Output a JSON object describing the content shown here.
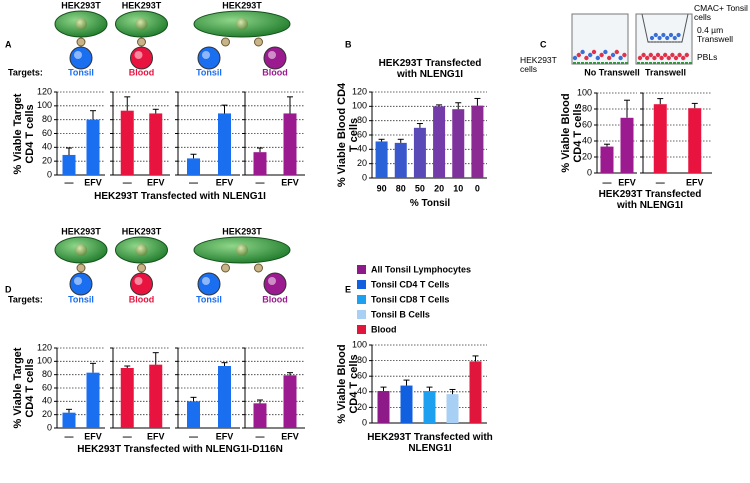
{
  "chart_data": [
    {
      "type": "bar",
      "panel": "A",
      "cell_label": "HEK293T",
      "targets_label": "Targets:",
      "ylabel": "% Viable Target CD4 T cells",
      "xlabel": "HEK293T Transfected with NLENG1I",
      "ylim": [
        0,
        120
      ],
      "yticks": [
        0,
        20,
        40,
        60,
        80,
        100,
        120
      ],
      "grid": true,
      "groups": [
        {
          "target": "Tonsil",
          "color": "#1a6ef0",
          "categories": [
            "—",
            "EFV"
          ],
          "values": [
            29,
            80
          ],
          "errors": [
            10,
            13
          ]
        },
        {
          "target": "Blood",
          "color": "#e8133f",
          "categories": [
            "—",
            "EFV"
          ],
          "values": [
            93,
            89
          ],
          "errors": [
            20,
            6
          ]
        },
        {
          "target": "Tonsil",
          "color": "#1a6ef0",
          "categories": [
            "—",
            "EFV"
          ],
          "values": [
            24,
            89
          ],
          "errors": [
            6,
            12
          ]
        },
        {
          "target": "Blood",
          "color": "#9b1a8f",
          "categories": [
            "—",
            "EFV"
          ],
          "values": [
            33,
            89
          ],
          "errors": [
            6,
            24
          ]
        }
      ]
    },
    {
      "type": "bar",
      "panel": "B",
      "title": "HEK293T Transfected with NLENG1I",
      "ylabel": "% Viable Blood CD4 T cells",
      "xlabel": "% Tonsil",
      "ylim": [
        0,
        120
      ],
      "yticks": [
        0,
        20,
        40,
        60,
        80,
        100,
        120
      ],
      "grid": true,
      "groups": [
        {
          "categories": [
            "90",
            "80",
            "50",
            "20",
            "10",
            "0"
          ],
          "values": [
            51,
            49,
            70,
            100,
            96,
            101
          ],
          "errors": [
            3,
            5,
            6,
            2,
            9,
            10
          ],
          "colors": [
            "#2a62d8",
            "#3a57cc",
            "#5a4ab8",
            "#733ca8",
            "#7e329c",
            "#8a2a92"
          ]
        }
      ]
    },
    {
      "type": "bar",
      "panel": "C",
      "ylabel": "% Viable Blood CD4 T cells",
      "xlabel": "HEK293T Transfected with NLENG1I",
      "annotations": [
        "HEK293T cells",
        "CMAC+ Tonsil cells",
        "0.4 µm Transwell",
        "PBLs"
      ],
      "ylim": [
        0,
        100
      ],
      "yticks": [
        0,
        20,
        40,
        60,
        80,
        100
      ],
      "grid": true,
      "groups": [
        {
          "title": "No Transwell",
          "color": "#9b1a8f",
          "categories": [
            "—",
            "EFV"
          ],
          "values": [
            33,
            69
          ],
          "errors": [
            3,
            22
          ]
        },
        {
          "title": "Transwell",
          "color": "#e8133f",
          "categories": [
            "—",
            "EFV"
          ],
          "values": [
            86,
            81
          ],
          "errors": [
            7,
            6
          ]
        }
      ]
    },
    {
      "type": "bar",
      "panel": "D",
      "cell_label": "HEK293T",
      "targets_label": "Targets:",
      "ylabel": "% Viable Target CD4 T cells",
      "xlabel": "HEK293T Transfected with NLENG1I-D116N",
      "ylim": [
        0,
        120
      ],
      "yticks": [
        0,
        20,
        40,
        60,
        80,
        100,
        120
      ],
      "grid": true,
      "groups": [
        {
          "target": "Tonsil",
          "color": "#1a6ef0",
          "categories": [
            "—",
            "EFV"
          ],
          "values": [
            23,
            83
          ],
          "errors": [
            5,
            14
          ]
        },
        {
          "target": "Blood",
          "color": "#e8133f",
          "categories": [
            "—",
            "EFV"
          ],
          "values": [
            90,
            95
          ],
          "errors": [
            3,
            18
          ]
        },
        {
          "target": "Tonsil",
          "color": "#1a6ef0",
          "categories": [
            "—",
            "EFV"
          ],
          "values": [
            40,
            93
          ],
          "errors": [
            6,
            5
          ]
        },
        {
          "target": "Blood",
          "color": "#9b1a8f",
          "categories": [
            "—",
            "EFV"
          ],
          "values": [
            37,
            79
          ],
          "errors": [
            5,
            4
          ]
        }
      ]
    },
    {
      "type": "bar",
      "panel": "E",
      "ylabel": "% Viable Blood CD4 T cells",
      "xlabel": "HEK293T Transfected with NLENG1I",
      "ylim": [
        0,
        100
      ],
      "yticks": [
        0,
        20,
        40,
        60,
        80,
        100
      ],
      "grid": true,
      "series": [
        {
          "name": "All Tonsil Lymphocytes",
          "color": "#8e1a8a",
          "values": [
            41
          ],
          "errors": [
            5
          ]
        },
        {
          "name": "Tonsil CD4 T Cells",
          "color": "#1060e0",
          "values": [
            48
          ],
          "errors": [
            7
          ]
        },
        {
          "name": "Tonsil CD8 T Cells",
          "color": "#1ea0f0",
          "values": [
            41
          ],
          "errors": [
            5
          ]
        },
        {
          "name": "Tonsil B Cells",
          "color": "#a8d0f5",
          "values": [
            37
          ],
          "errors": [
            6
          ]
        },
        {
          "name": "Blood",
          "color": "#e0163c",
          "values": [
            79
          ],
          "errors": [
            7
          ]
        }
      ]
    }
  ]
}
